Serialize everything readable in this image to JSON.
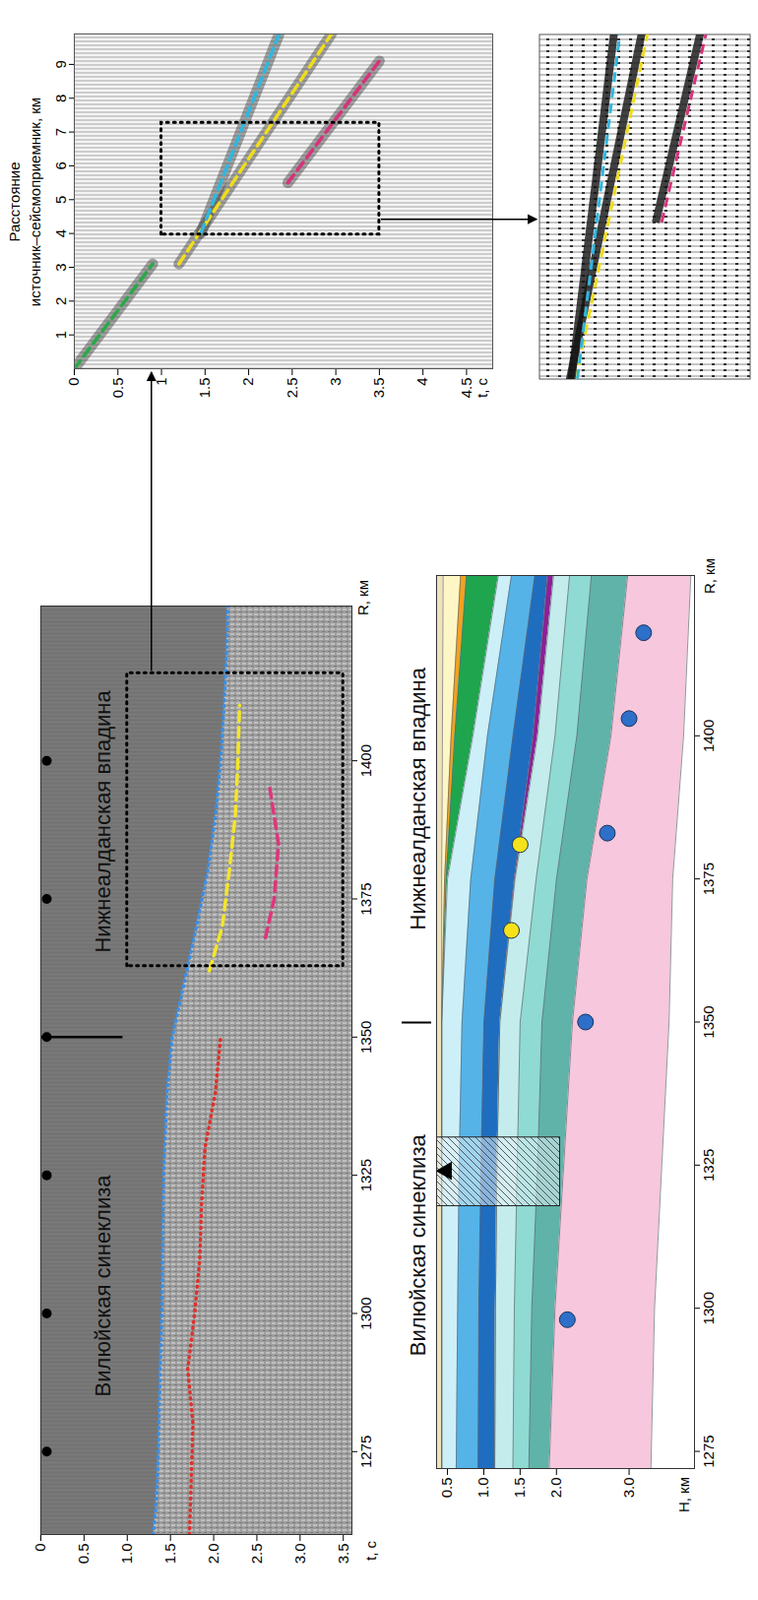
{
  "regions": [
    "Вилюйская синеклиза",
    "Нижнеалданская впадина"
  ],
  "boundary_R": 1350,
  "chart_data": [
    {
      "type": "line",
      "xlabel": "R, км",
      "ylabel": "t, с",
      "xlim": [
        1260,
        1428
      ],
      "xticks": [
        1275,
        1300,
        1325,
        1350,
        1375,
        1400
      ],
      "ylim": [
        0,
        3.6
      ],
      "yticks": [
        0,
        0.5,
        {
          "value": 1,
          "label": "1.0"
        },
        1.5,
        {
          "value": 2,
          "label": "2.0"
        },
        2.5,
        {
          "value": 3,
          "label": "3.0"
        },
        3.5
      ],
      "series": [
        {
          "color": "#3a8ee6",
          "line_style": "dotted",
          "x": [
            1260,
            1265,
            1275,
            1290,
            1300,
            1315,
            1325,
            1340,
            1350,
            1360,
            1370,
            1380,
            1390,
            1400,
            1410,
            1420,
            1428
          ],
          "values": [
            1.3,
            1.33,
            1.36,
            1.38,
            1.4,
            1.41,
            1.42,
            1.46,
            1.52,
            1.66,
            1.8,
            1.93,
            2.02,
            2.08,
            2.12,
            2.15,
            2.16
          ]
        },
        {
          "color": "#e0312b",
          "line_style": "dotted",
          "x": [
            1260,
            1270,
            1280,
            1290,
            1300,
            1310,
            1320,
            1330,
            1340,
            1350
          ],
          "values": [
            1.72,
            1.74,
            1.76,
            1.7,
            1.78,
            1.84,
            1.86,
            1.9,
            2.02,
            2.08
          ]
        },
        {
          "color": "#f4e52a",
          "line_style": "dashed",
          "x": [
            1362,
            1370,
            1380,
            1390,
            1400,
            1410
          ],
          "values": [
            1.95,
            2.1,
            2.18,
            2.25,
            2.28,
            2.3
          ]
        },
        {
          "color": "#e0357c",
          "line_style": "dashed",
          "x": [
            1368,
            1375,
            1385,
            1395
          ],
          "values": [
            2.6,
            2.7,
            2.75,
            2.65
          ]
        }
      ],
      "box": {
        "x": [
          1363,
          1416
        ],
        "y": [
          1.0,
          3.5
        ]
      },
      "boundary_t": [
        0,
        0.95
      ]
    },
    {
      "type": "line",
      "xlabel": "Расстояние источник–сейсмоприемник, км",
      "ylabel": "t, с",
      "xlim": [
        0,
        9.9
      ],
      "xticks": [
        1,
        2,
        3,
        4,
        5,
        6,
        7,
        8,
        9
      ],
      "ylim": [
        0,
        4.8
      ],
      "yticks": [
        0,
        0.5,
        1,
        1.5,
        2,
        2.5,
        3,
        3.5,
        4,
        4.5
      ],
      "series": [
        {
          "color": "#2ca84a",
          "line_style": "dashed",
          "x": [
            0,
            3.1
          ],
          "values": [
            0,
            0.9
          ]
        },
        {
          "color": "#f0dc1c",
          "line_style": "dashed",
          "x": [
            3.1,
            9.9
          ],
          "values": [
            1.2,
            2.95
          ]
        },
        {
          "color": "#2fb7e0",
          "line_style": "dashed",
          "x": [
            4.0,
            9.9
          ],
          "values": [
            1.45,
            2.35
          ]
        },
        {
          "color": "#d8327a",
          "line_style": "dashed",
          "x": [
            5.5,
            9.1
          ],
          "values": [
            2.45,
            3.5
          ]
        }
      ],
      "box": {
        "x": [
          4.0,
          7.3
        ],
        "y": [
          1.0,
          3.5
        ]
      }
    },
    {
      "type": "area",
      "xlabel": "R, км",
      "ylabel": "H, км",
      "xlim": [
        1272,
        1428
      ],
      "xticks": [
        1275,
        1300,
        1325,
        1350,
        1375,
        1400
      ],
      "ylim": [
        0.35,
        3.9
      ],
      "yticks": [
        0.5,
        {
          "value": 1,
          "label": "1.0"
        },
        1.5,
        {
          "value": 2,
          "label": "2.0"
        },
        {
          "value": 3,
          "label": "3.0"
        }
      ],
      "x": [
        1272,
        1300,
        1325,
        1350,
        1375,
        1400,
        1428
      ],
      "series": [
        {
          "color": "#efe2bd",
          "values": [
            0.42,
            0.42,
            0.42,
            0.42,
            0.42,
            0.43,
            0.44
          ]
        },
        {
          "color": "#fff6c6",
          "values": [
            0.42,
            0.42,
            0.42,
            0.42,
            0.46,
            0.55,
            0.68
          ]
        },
        {
          "color": "#f3a11f",
          "values": [
            0.42,
            0.42,
            0.42,
            0.42,
            0.48,
            0.6,
            0.76
          ]
        },
        {
          "color": "#1fa54d",
          "values": [
            0.42,
            0.42,
            0.42,
            0.42,
            0.5,
            0.85,
            1.2
          ]
        },
        {
          "color": "#cdeff8",
          "values": [
            0.62,
            0.64,
            0.66,
            0.7,
            0.82,
            1.05,
            1.38
          ]
        },
        {
          "color": "#55b3e8",
          "values": [
            0.92,
            0.93,
            0.96,
            1.0,
            1.15,
            1.4,
            1.7
          ]
        },
        {
          "color": "#1f6dbf",
          "values": [
            1.15,
            1.16,
            1.18,
            1.22,
            1.42,
            1.68,
            1.88
          ]
        },
        {
          "color": "#8e1f97",
          "values": [
            1.15,
            1.16,
            1.18,
            1.22,
            1.43,
            1.74,
            1.96
          ]
        },
        {
          "color": "#c4ecec",
          "values": [
            1.4,
            1.42,
            1.46,
            1.5,
            1.72,
            1.98,
            2.18
          ]
        },
        {
          "color": "#8fdad2",
          "values": [
            1.62,
            1.66,
            1.74,
            1.8,
            2.0,
            2.28,
            2.48
          ]
        },
        {
          "color": "#5fb3a8",
          "values": [
            1.9,
            1.98,
            2.1,
            2.22,
            2.42,
            2.75,
            2.98
          ]
        },
        {
          "color": "#f6c7dd",
          "values": [
            3.3,
            3.35,
            3.45,
            3.55,
            3.6,
            3.75,
            3.85
          ]
        }
      ],
      "points": [
        {
          "color": "#2d6fc9",
          "x": [
            1298,
            1350,
            1383,
            1403,
            1418
          ],
          "values": [
            2.15,
            2.4,
            2.7,
            3.0,
            3.2
          ]
        },
        {
          "color": "#f5e21b",
          "x": [
            1366,
            1381
          ],
          "values": [
            1.38,
            1.5
          ]
        }
      ],
      "well": {
        "x": [
          1318,
          1330
        ],
        "y": [
          0.35,
          2.05
        ]
      }
    }
  ]
}
